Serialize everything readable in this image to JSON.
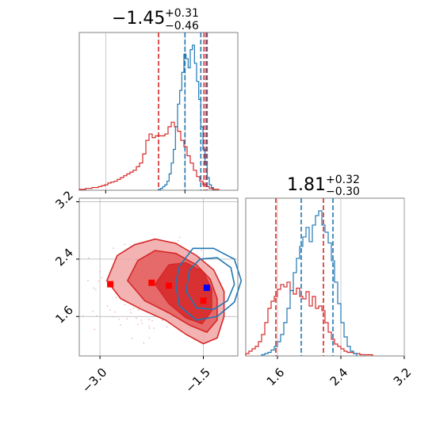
{
  "chart_data": {
    "type": "corner",
    "parameters": 2,
    "colors": {
      "red": "#d62728",
      "blue": "#1f77b4",
      "grid": "#b0b0b0",
      "axis": "#808080"
    },
    "grid": true,
    "panel_param1_hist": {
      "position": "top-left",
      "title": {
        "median": "−1.45",
        "plus": "+0.31",
        "minus": "−0.46"
      },
      "xlim": [
        -3.5,
        -0.5
      ],
      "red_quantiles": [
        -2.0,
        -1.14,
        -1.1
      ],
      "blue_quantiles": [
        -1.5,
        -1.2,
        -1.08
      ],
      "red_hist": {
        "x0": -3.5,
        "width": 0.06,
        "counts": [
          1,
          1,
          2,
          2,
          3,
          3,
          4,
          5,
          6,
          8,
          9,
          10,
          12,
          14,
          16,
          18,
          20,
          22,
          26,
          30,
          40,
          55,
          62,
          58,
          60,
          60,
          60,
          62,
          70,
          75,
          70,
          65,
          55,
          48,
          38,
          30,
          22,
          15,
          10,
          6,
          4,
          2,
          1,
          1
        ]
      },
      "blue_hist": {
        "x0": -2.0,
        "width": 0.04,
        "counts": [
          1,
          2,
          4,
          6,
          10,
          18,
          30,
          45,
          70,
          95,
          110,
          130,
          150,
          145,
          135,
          155,
          160,
          140,
          120,
          100,
          70,
          45,
          28,
          14,
          6,
          3
        ]
      }
    },
    "panel_param2_hist": {
      "position": "bottom-right",
      "title": {
        "median": "1.81",
        "plus": "+0.32",
        "minus": "−0.30"
      },
      "xlim": [
        1.2,
        3.2
      ],
      "x_ticks": [
        "1.6",
        "2.4",
        "3.2"
      ],
      "red_quantiles": [
        1.58,
        2.18
      ],
      "blue_quantiles": [
        1.9,
        2.3
      ],
      "red_hist": {
        "x0": 1.2,
        "width": 0.04,
        "counts": [
          2,
          4,
          6,
          8,
          12,
          18,
          28,
          40,
          46,
          50,
          56,
          60,
          58,
          62,
          55,
          52,
          57,
          50,
          48,
          54,
          42,
          50,
          40,
          42,
          38,
          28,
          20,
          14,
          10,
          8,
          6,
          4,
          3,
          3,
          2,
          2,
          1,
          1,
          1,
          1
        ]
      },
      "blue_hist": {
        "x0": 1.4,
        "width": 0.04,
        "counts": [
          1,
          2,
          3,
          5,
          8,
          12,
          18,
          28,
          40,
          55,
          70,
          82,
          92,
          100,
          108,
          96,
          110,
          118,
          122,
          110,
          104,
          95,
          80,
          62,
          44,
          28,
          16,
          8,
          4,
          2
        ]
      }
    },
    "panel_joint": {
      "position": "bottom-left",
      "xlim": [
        -3.3,
        -1.0
      ],
      "ylim": [
        1.05,
        3.25
      ],
      "x_ticks": [
        "−3.0",
        "−1.5"
      ],
      "y_ticks": [
        "1.6",
        "2.4",
        "3.2"
      ],
      "red_markers": [
        {
          "x": -2.85,
          "y": 2.05
        },
        {
          "x": -2.25,
          "y": 2.07
        },
        {
          "x": -2.0,
          "y": 2.03
        },
        {
          "x": -1.5,
          "y": 1.82
        }
      ],
      "blue_markers": [
        {
          "x": -1.45,
          "y": 2.0
        }
      ],
      "red_contours": [
        [
          [
            -2.9,
            2.1
          ],
          [
            -2.75,
            2.45
          ],
          [
            -2.5,
            2.6
          ],
          [
            -2.2,
            2.68
          ],
          [
            -1.9,
            2.62
          ],
          [
            -1.6,
            2.45
          ],
          [
            -1.35,
            2.25
          ],
          [
            -1.2,
            1.95
          ],
          [
            -1.2,
            1.6
          ],
          [
            -1.3,
            1.3
          ],
          [
            -1.5,
            1.22
          ],
          [
            -1.75,
            1.35
          ],
          [
            -2.05,
            1.55
          ],
          [
            -2.4,
            1.7
          ],
          [
            -2.7,
            1.85
          ]
        ],
        [
          [
            -2.6,
            2.1
          ],
          [
            -2.45,
            2.38
          ],
          [
            -2.2,
            2.52
          ],
          [
            -1.9,
            2.48
          ],
          [
            -1.6,
            2.32
          ],
          [
            -1.4,
            2.12
          ],
          [
            -1.3,
            1.85
          ],
          [
            -1.3,
            1.55
          ],
          [
            -1.45,
            1.38
          ],
          [
            -1.7,
            1.48
          ],
          [
            -2.0,
            1.65
          ],
          [
            -2.35,
            1.82
          ]
        ],
        [
          [
            -2.2,
            2.05
          ],
          [
            -2.0,
            2.32
          ],
          [
            -1.75,
            2.35
          ],
          [
            -1.5,
            2.22
          ],
          [
            -1.38,
            1.98
          ],
          [
            -1.38,
            1.68
          ],
          [
            -1.52,
            1.5
          ],
          [
            -1.75,
            1.58
          ],
          [
            -2.0,
            1.78
          ]
        ]
      ],
      "blue_contours": [
        [
          [
            -1.85,
            2.3
          ],
          [
            -1.65,
            2.55
          ],
          [
            -1.35,
            2.55
          ],
          [
            -1.05,
            2.4
          ],
          [
            -0.95,
            2.1
          ],
          [
            -1.05,
            1.8
          ],
          [
            -1.3,
            1.6
          ],
          [
            -1.6,
            1.55
          ],
          [
            -1.85,
            1.75
          ],
          [
            -1.9,
            2.05
          ]
        ],
        [
          [
            -1.7,
            2.25
          ],
          [
            -1.55,
            2.4
          ],
          [
            -1.3,
            2.42
          ],
          [
            -1.1,
            2.28
          ],
          [
            -1.05,
            2.05
          ],
          [
            -1.15,
            1.82
          ],
          [
            -1.35,
            1.7
          ],
          [
            -1.6,
            1.72
          ],
          [
            -1.75,
            1.95
          ]
        ]
      ]
    }
  }
}
